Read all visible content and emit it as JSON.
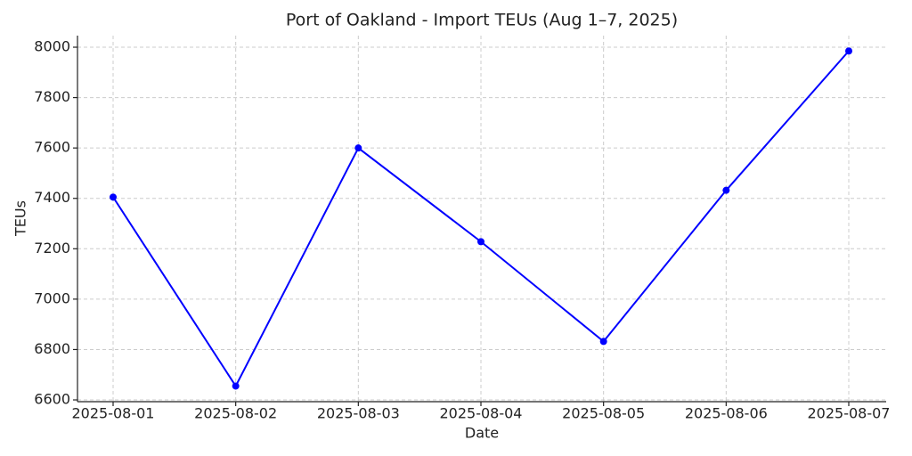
{
  "chart_data": {
    "type": "line",
    "title": "Port of Oakland - Import TEUs (Aug 1–7, 2025)",
    "x_label": "Date",
    "y_label": "TEUs",
    "categories": [
      "2025-08-01",
      "2025-08-02",
      "2025-08-03",
      "2025-08-04",
      "2025-08-05",
      "2025-08-06",
      "2025-08-07"
    ],
    "series": [
      {
        "name": "Import TEUs",
        "color": "#0000ff",
        "values": [
          7405,
          6655,
          7600,
          7228,
          6832,
          7432,
          7985
        ]
      }
    ],
    "ylim": [
      6593,
      8046
    ],
    "yticks": [
      6600,
      6800,
      7000,
      7200,
      7400,
      7600,
      7800,
      8000
    ],
    "grid": true
  }
}
